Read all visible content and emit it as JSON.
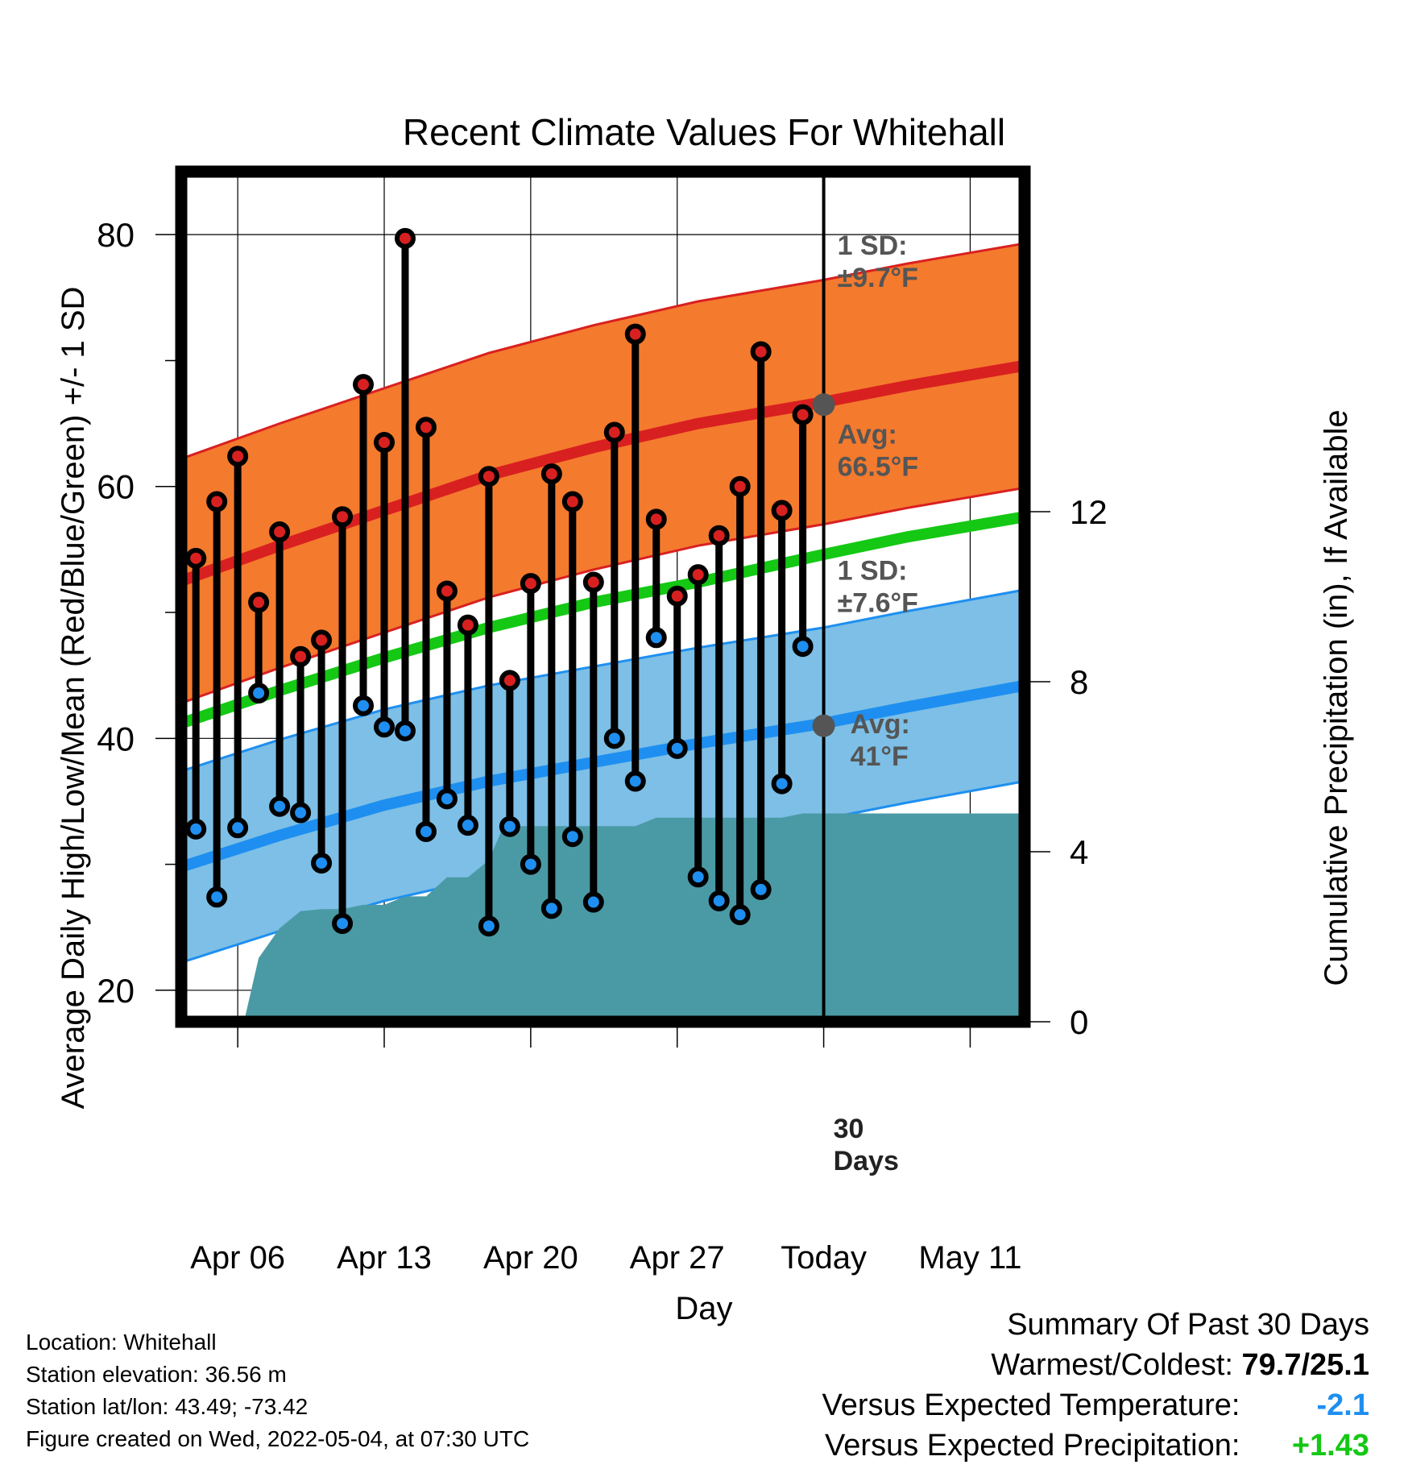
{
  "chart_data": {
    "type": "line",
    "title": "Recent Climate Values For Whitehall",
    "xlabel": "Day",
    "ylabel_left": "Average Daily High/Low/Mean (Red/Blue/Green) +/- 1 SD",
    "ylabel_right": "Cumulative Precipitation (in), If Available",
    "ylim": [
      17.5,
      85
    ],
    "y2lim": [
      0,
      20
    ],
    "y_ticks": [
      20,
      40,
      60,
      80
    ],
    "y2_ticks": [
      0,
      4,
      8,
      12
    ],
    "grid": true,
    "x_ticks": [
      {
        "day": 6,
        "label": "Apr 06"
      },
      {
        "day": 13,
        "label": "Apr 13"
      },
      {
        "day": 20,
        "label": "Apr 20"
      },
      {
        "day": 27,
        "label": "Apr 27"
      },
      {
        "day": 34,
        "label": "Today"
      },
      {
        "day": 41,
        "label": "May 11"
      }
    ],
    "xlim": [
      3.3,
      43.6
    ],
    "today_day": 34,
    "days_marker": "30\nDays",
    "normal_high": {
      "days": [
        3.3,
        8,
        13,
        18,
        23,
        28,
        34,
        38,
        43.6
      ],
      "mean": [
        52.5,
        55.3,
        58.1,
        60.9,
        63.1,
        65.0,
        66.7,
        68.0,
        69.6
      ],
      "sd": 9.7,
      "annotation_sd": "1 SD:\n±9.7°F",
      "annotation_avg": "Avg:\n66.5°F",
      "avg_value": 66.5
    },
    "normal_low": {
      "days": [
        3.3,
        8,
        13,
        18,
        23,
        28,
        34,
        38,
        43.6
      ],
      "mean": [
        29.8,
        32.3,
        34.7,
        36.6,
        38.1,
        39.6,
        41.2,
        42.5,
        44.2
      ],
      "sd": 7.6,
      "annotation_sd": "1 SD:\n±7.6°F",
      "annotation_avg": "Avg:\n41°F",
      "avg_value": 41
    },
    "normal_mean": {
      "days": [
        3.3,
        8,
        13,
        18,
        23,
        28,
        34,
        38,
        43.6
      ],
      "values": [
        41.2,
        43.8,
        46.4,
        48.8,
        50.8,
        52.4,
        54.6,
        56.0,
        57.6
      ]
    },
    "daily": [
      {
        "day": 4,
        "high": 54.3,
        "low": 32.8
      },
      {
        "day": 5,
        "high": 58.8,
        "low": 27.4
      },
      {
        "day": 6,
        "high": 62.4,
        "low": 32.9
      },
      {
        "day": 7,
        "high": 50.8,
        "low": 43.6
      },
      {
        "day": 8,
        "high": 56.4,
        "low": 34.6
      },
      {
        "day": 9,
        "high": 46.5,
        "low": 34.1
      },
      {
        "day": 10,
        "high": 47.8,
        "low": 30.1
      },
      {
        "day": 11,
        "high": 57.6,
        "low": 25.3
      },
      {
        "day": 12,
        "high": 68.1,
        "low": 42.6
      },
      {
        "day": 13,
        "high": 63.5,
        "low": 40.9
      },
      {
        "day": 14,
        "high": 79.7,
        "low": 40.6
      },
      {
        "day": 15,
        "high": 64.7,
        "low": 32.6
      },
      {
        "day": 16,
        "high": 51.7,
        "low": 35.2
      },
      {
        "day": 17,
        "high": 49.0,
        "low": 33.1
      },
      {
        "day": 18,
        "high": 60.8,
        "low": 25.1
      },
      {
        "day": 19,
        "high": 44.6,
        "low": 33.0
      },
      {
        "day": 20,
        "high": 52.3,
        "low": 30.0
      },
      {
        "day": 21,
        "high": 61.0,
        "low": 26.5
      },
      {
        "day": 22,
        "high": 58.8,
        "low": 32.2
      },
      {
        "day": 23,
        "high": 52.4,
        "low": 27.0
      },
      {
        "day": 24,
        "high": 64.3,
        "low": 40.0
      },
      {
        "day": 25,
        "high": 72.1,
        "low": 36.6
      },
      {
        "day": 26,
        "high": 57.4,
        "low": 48.0
      },
      {
        "day": 27,
        "high": 51.3,
        "low": 39.2
      },
      {
        "day": 28,
        "high": 53.0,
        "low": 29.0
      },
      {
        "day": 29,
        "high": 56.1,
        "low": 27.1
      },
      {
        "day": 30,
        "high": 60.0,
        "low": 26.0
      },
      {
        "day": 31,
        "high": 70.7,
        "low": 28.0
      },
      {
        "day": 32,
        "high": 58.1,
        "low": 36.4
      },
      {
        "day": 33,
        "high": 65.7,
        "low": 47.3
      }
    ],
    "precip_cumulative": {
      "days": [
        3.3,
        4,
        5.2,
        6.3,
        7,
        8,
        9,
        10,
        11,
        12,
        13,
        14,
        15,
        16,
        17,
        18,
        18.7,
        19,
        20,
        21,
        22,
        23,
        24,
        25,
        26,
        27,
        28,
        29,
        30,
        31,
        32,
        33,
        34,
        36,
        38,
        43.6
      ],
      "values": [
        0,
        0,
        0,
        0,
        1.5,
        2.2,
        2.6,
        2.65,
        2.65,
        2.75,
        2.75,
        2.95,
        2.95,
        3.4,
        3.4,
        3.8,
        4.6,
        4.6,
        4.6,
        4.6,
        4.6,
        4.6,
        4.6,
        4.6,
        4.8,
        4.8,
        4.8,
        4.8,
        4.8,
        4.8,
        4.8,
        4.9,
        4.9,
        4.9,
        4.9,
        4.9
      ]
    },
    "colors": {
      "high": "#d92020",
      "high_band": "#f47a2e",
      "low": "#1e8ff0",
      "low_band": "#7dbfe6",
      "mean": "#14c814",
      "precip": "#4a9aa5",
      "annotation": "#555555"
    }
  },
  "info": {
    "location": "Location: Whitehall",
    "elevation": "Station elevation: 36.56 m",
    "latlon": "Station lat/lon: 43.49; -73.42",
    "created": "Figure created on Wed, 2022-05-04, at 07:30 UTC"
  },
  "summary": {
    "title": "Summary Of Past 30 Days",
    "warm_cold_label": "Warmest/Coldest:",
    "warm_cold_value": "79.7/25.1",
    "temp_label": "Versus Expected Temperature:",
    "temp_value": "-2.1",
    "temp_color": "#1e8ff0",
    "precip_label": "Versus Expected Precipitation:",
    "precip_value": "+1.43",
    "precip_color": "#14c814"
  }
}
